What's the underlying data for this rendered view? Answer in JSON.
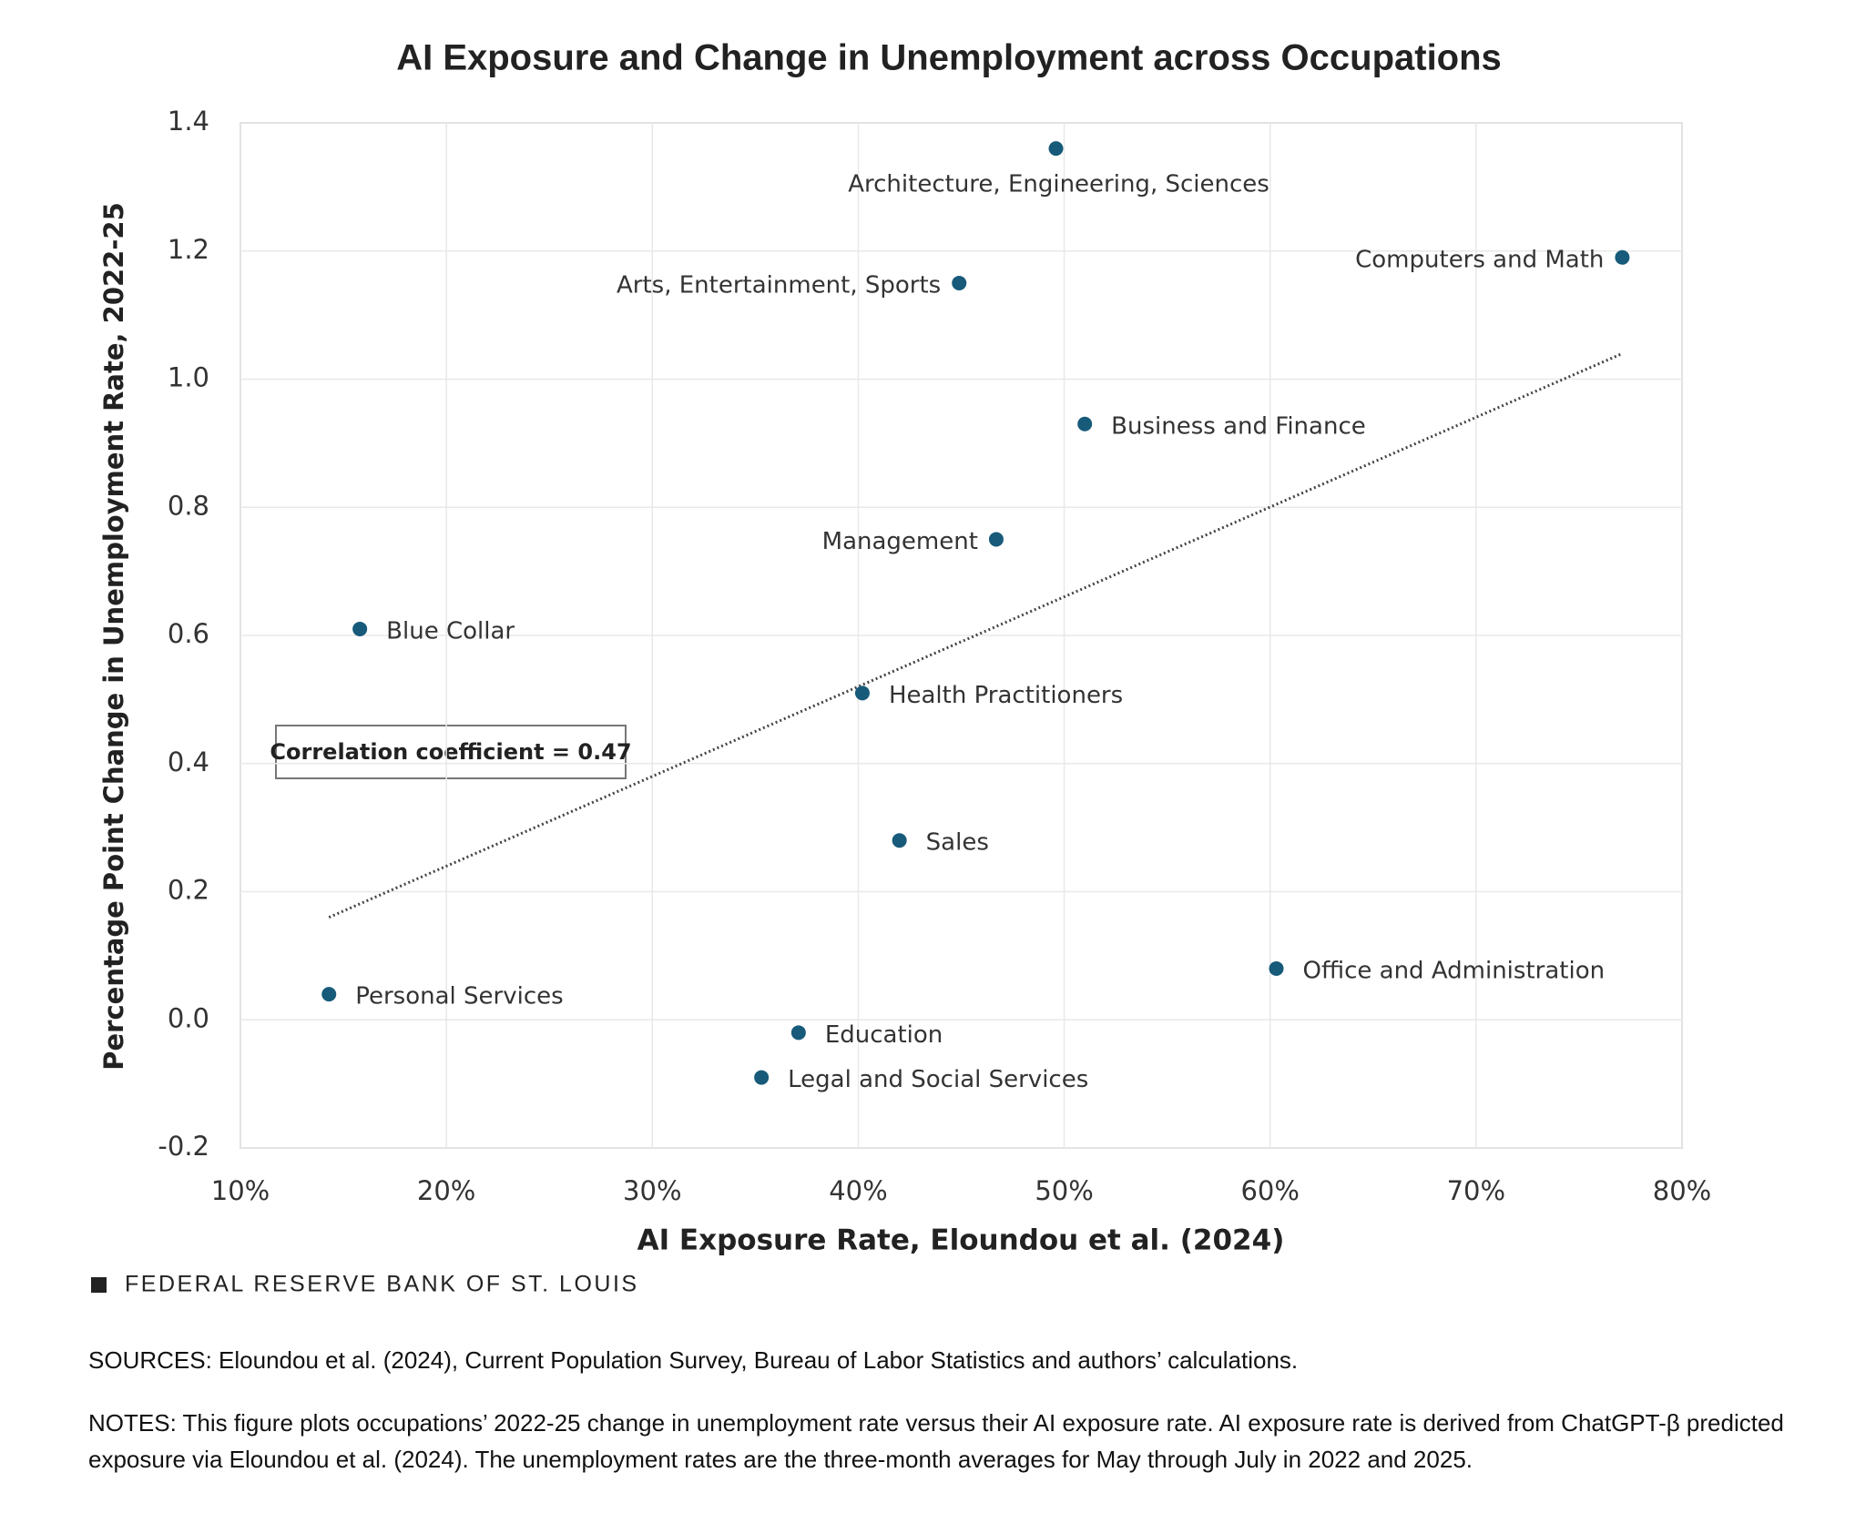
{
  "chart_data": {
    "type": "scatter",
    "title": "AI Exposure and Change in Unemployment across Occupations",
    "x_label": "AI Exposure Rate, Eloundou et al. (2024)",
    "y_label": "Percentage Point Change in Unemployment Rate, 2022-25",
    "labels": [
      "Architecture, Engineering, Sciences",
      "Computers and Math",
      "Arts, Entertainment, Sports",
      "Business and Finance",
      "Management",
      "Blue Collar",
      "Health Practitioners",
      "Sales",
      "Office and Administration",
      "Personal Services",
      "Education",
      "Legal and Social Services"
    ],
    "x": [
      49.6,
      77.1,
      44.9,
      51.0,
      46.7,
      15.8,
      40.2,
      42.0,
      60.3,
      14.3,
      37.1,
      35.3
    ],
    "values": [
      1.36,
      1.19,
      1.15,
      0.93,
      0.75,
      0.61,
      0.51,
      0.28,
      0.08,
      0.04,
      -0.02,
      -0.09
    ],
    "color": "#175a7a",
    "trendline": {
      "x": [
        14.3,
        77.1
      ],
      "values": [
        0.16,
        1.04
      ]
    },
    "annotation": "Correlation coefficient = 0.47",
    "xlim": [
      10,
      80
    ],
    "xticks": [
      {
        "value": 10,
        "label": "10%"
      },
      {
        "value": 20,
        "label": "20%"
      },
      {
        "value": 30,
        "label": "30%"
      },
      {
        "value": 40,
        "label": "40%"
      },
      {
        "value": 50,
        "label": "50%"
      },
      {
        "value": 60,
        "label": "60%"
      },
      {
        "value": 70,
        "label": "70%"
      },
      {
        "value": 80,
        "label": "80%"
      }
    ],
    "ylim": [
      -0.2,
      1.4
    ],
    "yticks": [
      -0.2,
      {
        "value": 0,
        "label": "0.0"
      },
      0.2,
      0.4,
      0.6,
      0.8,
      {
        "value": 1,
        "label": "1.0"
      },
      1.2,
      1.4
    ],
    "grid": true
  },
  "footer": {
    "brand": "FEDERAL RESERVE BANK OF ST. LOUIS",
    "sources": "SOURCES: Eloundou et al. (2024), Current Population Survey, Bureau of Labor Statistics and authors’ calculations.",
    "notes": "NOTES: This figure plots occupations’ 2022-25 change in unemployment rate versus their AI exposure rate. AI exposure rate is derived from ChatGPT-β predicted exposure via Eloundou et al. (2024). The unemployment rates are the three-month averages for May through July in 2022 and 2025."
  }
}
